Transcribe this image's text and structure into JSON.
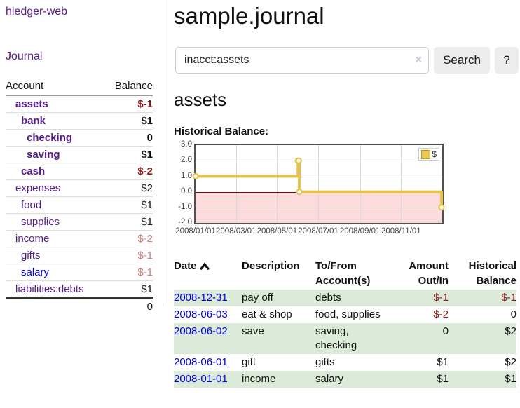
{
  "app": {
    "title": "hledger-web",
    "journal_link": "Journal"
  },
  "colors": {
    "link_visited": "#551a8b",
    "link_new": "#0000e6",
    "negative_strong": "#8b1515",
    "negative_muted": "#c98080",
    "stripe_green": "#dcead9",
    "chart_line": "#e7c24a",
    "zero_line": "#8b0000",
    "negative_region": "#fbdbdb"
  },
  "icons": {
    "clear_search": "×",
    "sort_ascending": "chevron-up-icon"
  },
  "sidebar": {
    "headers": [
      "Account",
      "Balance"
    ],
    "rows": [
      {
        "name": "assets",
        "balance": "$-1",
        "level": 1,
        "active": true,
        "tone": "neg",
        "link": "visited"
      },
      {
        "name": "bank",
        "balance": "$1",
        "level": 2,
        "active": true,
        "tone": "",
        "link": "visited"
      },
      {
        "name": "checking",
        "balance": "0",
        "level": 3,
        "active": true,
        "tone": "",
        "link": "visited"
      },
      {
        "name": "saving",
        "balance": "$1",
        "level": 3,
        "active": true,
        "tone": "",
        "link": "visited"
      },
      {
        "name": "cash",
        "balance": "$-2",
        "level": 2,
        "active": true,
        "tone": "neg",
        "link": "visited"
      },
      {
        "name": "expenses",
        "balance": "$2",
        "level": 1,
        "active": false,
        "tone": "",
        "link": "visited"
      },
      {
        "name": "food",
        "balance": "$1",
        "level": 2,
        "active": false,
        "tone": "",
        "link": "visited"
      },
      {
        "name": "supplies",
        "balance": "$1",
        "level": 2,
        "active": false,
        "tone": "",
        "link": "visited"
      },
      {
        "name": "income",
        "balance": "$-2",
        "level": 1,
        "active": false,
        "tone": "negmuted",
        "link": "visited"
      },
      {
        "name": "gifts",
        "balance": "$-1",
        "level": 2,
        "active": false,
        "tone": "negmuted",
        "link": "visited"
      },
      {
        "name": "salary",
        "balance": "$-1",
        "level": 2,
        "active": false,
        "tone": "negmuted",
        "link": "new"
      },
      {
        "name": "liabilities:debts",
        "balance": "$1",
        "level": 1,
        "active": false,
        "tone": "",
        "link": "visited"
      }
    ],
    "total": "0"
  },
  "main": {
    "title": "sample.journal",
    "search": {
      "value": "inacct:assets",
      "clear_icon": "×",
      "button_label": "Search",
      "help_label": "?"
    },
    "account_heading": "assets",
    "chart_label": "Historical Balance:"
  },
  "chart_data": {
    "type": "line",
    "step": true,
    "title": "Historical Balance",
    "xlim": [
      1,
      367
    ],
    "ylim": [
      -2,
      3
    ],
    "x_unit": "day-of-year-2008",
    "x_ticks": [
      {
        "day": 1,
        "label": "2008/01/01"
      },
      {
        "day": 61,
        "label": "2008/03/01"
      },
      {
        "day": 122,
        "label": "2008/05/01"
      },
      {
        "day": 183,
        "label": "2008/07/01"
      },
      {
        "day": 245,
        "label": "2008/09/01"
      },
      {
        "day": 306,
        "label": "2008/11/01"
      }
    ],
    "y_ticks": [
      {
        "v": 3,
        "label": "3.0"
      },
      {
        "v": 2,
        "label": "2.0"
      },
      {
        "v": 1,
        "label": "1.0"
      },
      {
        "v": 0,
        "label": "0.0"
      },
      {
        "v": -1,
        "label": "-1.0"
      },
      {
        "v": -2,
        "label": "-2.0"
      }
    ],
    "series": [
      {
        "name": "$",
        "color": "#e7c24a",
        "points": [
          [
            1,
            1
          ],
          [
            153,
            2
          ],
          [
            154,
            2
          ],
          [
            155,
            0
          ],
          [
            366,
            -1
          ]
        ],
        "dates": [
          "2008-01-01",
          "2008-06-01",
          "2008-06-02",
          "2008-06-03",
          "2008-12-31"
        ]
      }
    ],
    "legend": {
      "position": "top-right",
      "entries": [
        "$"
      ]
    },
    "grid": true,
    "zero_line": true,
    "negative_region_shaded": true
  },
  "register": {
    "headers": [
      "Date",
      "Description",
      "To/From Account(s)",
      "Amount Out/In",
      "Historical Balance"
    ],
    "rows": [
      {
        "date": "2008-12-31",
        "description": "pay off",
        "accounts": "debts",
        "amount": "$-1",
        "amount_tone": "neg",
        "balance": "$-1",
        "balance_tone": "neg"
      },
      {
        "date": "2008-06-03",
        "description": "eat & shop",
        "accounts": "food, supplies",
        "amount": "$-2",
        "amount_tone": "neg",
        "balance": "0",
        "balance_tone": ""
      },
      {
        "date": "2008-06-02",
        "description": "save",
        "accounts": "saving, checking",
        "amount": "0",
        "amount_tone": "",
        "balance": "$2",
        "balance_tone": ""
      },
      {
        "date": "2008-06-01",
        "description": "gift",
        "accounts": "gifts",
        "amount": "$1",
        "amount_tone": "",
        "balance": "$2",
        "balance_tone": ""
      },
      {
        "date": "2008-01-01",
        "description": "income",
        "accounts": "salary",
        "amount": "$1",
        "amount_tone": "",
        "balance": "$1",
        "balance_tone": ""
      }
    ]
  }
}
